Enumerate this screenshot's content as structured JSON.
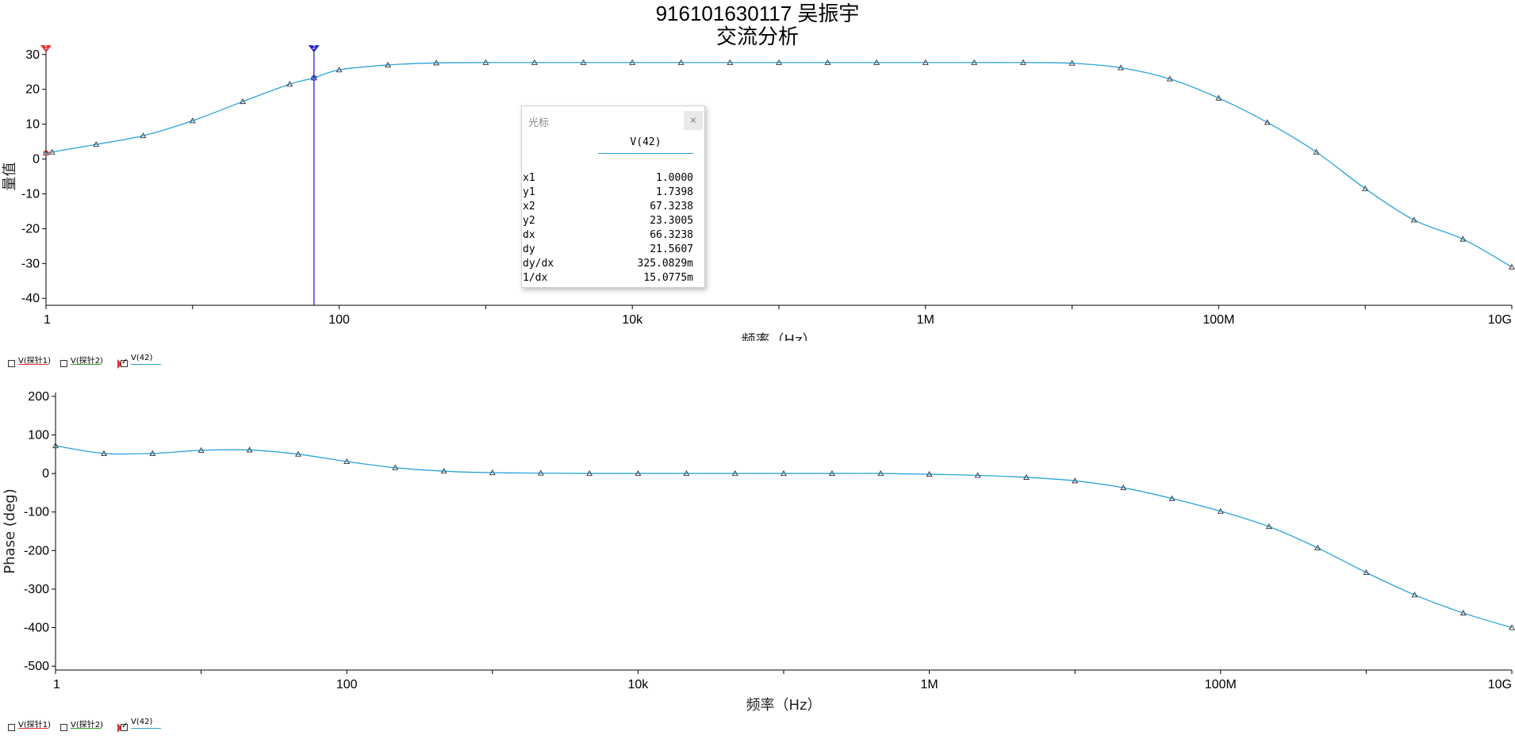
{
  "title": "916101630117 吴振宇",
  "subtitle": "交流分析",
  "legend_items": [
    {
      "label": "V(探针1)",
      "color": "#e53030",
      "checked": false
    },
    {
      "label": "V(探针2)",
      "color": "#2ca02c",
      "checked": false
    },
    {
      "label": "V(42)",
      "color": "#2aa3da",
      "checked": true
    }
  ],
  "cursor_panel": {
    "title": "光标",
    "close_icon": "close-icon",
    "column": "V(42)",
    "rows": [
      {
        "key": "x1",
        "value": "1.0000"
      },
      {
        "key": "y1",
        "value": "1.7398"
      },
      {
        "key": "x2",
        "value": "67.3238"
      },
      {
        "key": "y2",
        "value": "23.3005"
      },
      {
        "key": "dx",
        "value": "66.3238"
      },
      {
        "key": "dy",
        "value": "21.5607"
      },
      {
        "key": "dy/dx",
        "value": "325.0829m"
      },
      {
        "key": "1/dx",
        "value": "15.0775m"
      }
    ]
  },
  "cursors": [
    {
      "label": "1",
      "x": 1,
      "color": "#00cccc",
      "flag_color": "#e53030"
    },
    {
      "label": "2",
      "x": 67.3238,
      "color": "#2222cc",
      "flag_color": "#2222cc"
    }
  ],
  "chart_data": [
    {
      "type": "line",
      "xscale": "log",
      "xlabel": "频率（Hz）",
      "ylabel": "量值",
      "xlim": [
        1,
        10000000000
      ],
      "ylim": [
        -42,
        32
      ],
      "xticks": [
        {
          "value": 1,
          "label": "1"
        },
        {
          "value": 100,
          "label": "100"
        },
        {
          "value": 10000,
          "label": "10k"
        },
        {
          "value": 1000000,
          "label": "1M"
        },
        {
          "value": 100000000,
          "label": "100M"
        },
        {
          "value": 10000000000,
          "label": "10G"
        }
      ],
      "yticks": [
        30,
        20,
        10,
        0,
        -10,
        -20,
        -30,
        -40
      ],
      "series": [
        {
          "name": "V(42)",
          "color": "#2aa3da",
          "points": [
            [
              1,
              1.74
            ],
            [
              1.1,
              2.0
            ],
            [
              2.2,
              4.2
            ],
            [
              4.6,
              6.7
            ],
            [
              10,
              11
            ],
            [
              22,
              16.5
            ],
            [
              46,
              21.5
            ],
            [
              67.3,
              23.3
            ],
            [
              100,
              25.6
            ],
            [
              215,
              27
            ],
            [
              460,
              27.6
            ],
            [
              1000,
              27.7
            ],
            [
              2150,
              27.7
            ],
            [
              4640,
              27.7
            ],
            [
              10000,
              27.7
            ],
            [
              21500,
              27.7
            ],
            [
              46400,
              27.7
            ],
            [
              100000,
              27.7
            ],
            [
              215000,
              27.7
            ],
            [
              464000,
              27.7
            ],
            [
              1000000,
              27.7
            ],
            [
              2150000,
              27.7
            ],
            [
              4640000,
              27.7
            ],
            [
              10000000,
              27.5
            ],
            [
              21500000,
              26.2
            ],
            [
              46400000,
              23
            ],
            [
              100000000,
              17.5
            ],
            [
              215000000,
              10.5
            ],
            [
              464000000,
              2
            ],
            [
              1000000000,
              -8.5
            ],
            [
              2150000000,
              -17.5
            ],
            [
              4640000000,
              -23
            ],
            [
              10000000000,
              -31
            ]
          ]
        }
      ]
    },
    {
      "type": "line",
      "xscale": "log",
      "xlabel": "频率（Hz）",
      "ylabel": "Phase (deg)",
      "xlim": [
        1,
        10000000000
      ],
      "ylim": [
        -510,
        210
      ],
      "xticks": [
        {
          "value": 1,
          "label": "1"
        },
        {
          "value": 100,
          "label": "100"
        },
        {
          "value": 10000,
          "label": "10k"
        },
        {
          "value": 1000000,
          "label": "1M"
        },
        {
          "value": 100000000,
          "label": "100M"
        },
        {
          "value": 10000000000,
          "label": "10G"
        }
      ],
      "yticks": [
        200,
        100,
        0,
        -100,
        -200,
        -300,
        -400,
        -500
      ],
      "series": [
        {
          "name": "V(42)",
          "color": "#2aa3da",
          "points": [
            [
              1,
              72
            ],
            [
              2.15,
              52
            ],
            [
              4.64,
              52
            ],
            [
              10,
              60
            ],
            [
              21.5,
              61
            ],
            [
              46.4,
              50
            ],
            [
              100,
              31
            ],
            [
              215,
              15
            ],
            [
              464,
              6
            ],
            [
              1000,
              2
            ],
            [
              2150,
              1
            ],
            [
              4640,
              0
            ],
            [
              10000,
              0
            ],
            [
              21500,
              0
            ],
            [
              46400,
              0
            ],
            [
              100000,
              0
            ],
            [
              215000,
              0
            ],
            [
              464000,
              0
            ],
            [
              1000000,
              -2
            ],
            [
              2150000,
              -5
            ],
            [
              4640000,
              -10
            ],
            [
              10000000,
              -19
            ],
            [
              21500000,
              -37
            ],
            [
              46400000,
              -65
            ],
            [
              100000000,
              -98
            ],
            [
              215000000,
              -138
            ],
            [
              464000000,
              -193
            ],
            [
              1000000000,
              -257
            ],
            [
              2150000000,
              -315
            ],
            [
              4640000000,
              -362
            ],
            [
              10000000000,
              -400
            ]
          ]
        }
      ]
    }
  ]
}
